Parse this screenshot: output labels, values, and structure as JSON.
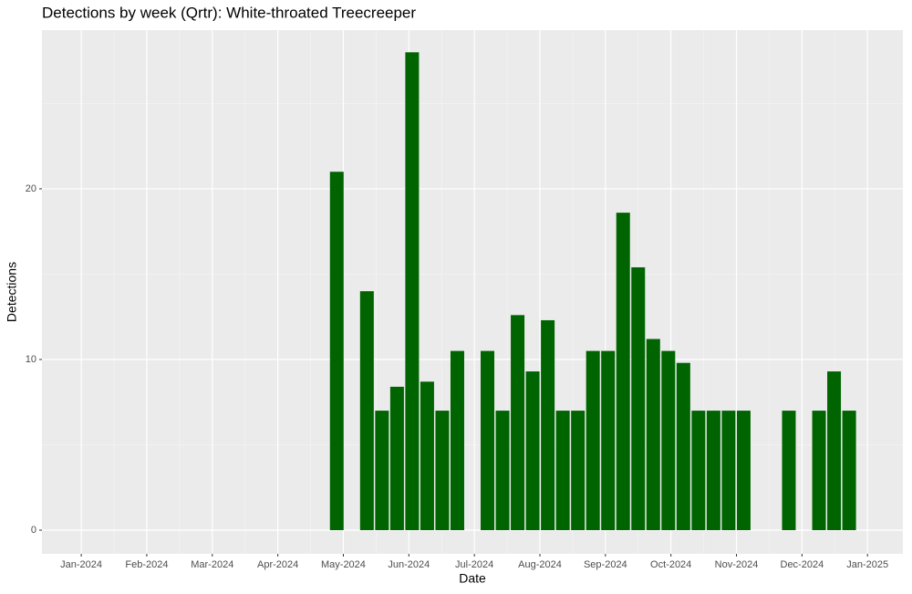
{
  "chart_data": {
    "type": "bar",
    "title": "Detections by week (Qrtr): White-throated Treecreeper",
    "x_label": "Date",
    "y_label": "Detections",
    "x": [
      4.9,
      5.36,
      5.59,
      5.82,
      6.05,
      6.28,
      6.51,
      6.74,
      7.2,
      7.43,
      7.66,
      7.89,
      8.12,
      8.35,
      8.58,
      8.81,
      9.04,
      9.27,
      9.5,
      9.73,
      9.96,
      10.19,
      10.42,
      10.65,
      10.88,
      11.11,
      11.8,
      12.26,
      12.49,
      12.72
    ],
    "values": [
      21,
      14,
      7,
      8.4,
      28,
      8.7,
      7,
      10.5,
      10.5,
      7,
      12.6,
      9.3,
      12.3,
      7,
      7,
      10.5,
      10.5,
      18.6,
      15.4,
      11.2,
      10.5,
      9.8,
      7,
      7,
      7,
      7,
      7,
      7,
      9.3,
      7
    ],
    "color": "#006400",
    "xlim": [
      0.4,
      13.54
    ],
    "xticks": [
      {
        "value": 1,
        "label": "Jan-2024"
      },
      {
        "value": 2,
        "label": "Feb-2024"
      },
      {
        "value": 3,
        "label": "Mar-2024"
      },
      {
        "value": 4,
        "label": "Apr-2024"
      },
      {
        "value": 5,
        "label": "May-2024"
      },
      {
        "value": 6,
        "label": "Jun-2024"
      },
      {
        "value": 7,
        "label": "Jul-2024"
      },
      {
        "value": 8,
        "label": "Aug-2024"
      },
      {
        "value": 9,
        "label": "Sep-2024"
      },
      {
        "value": 10,
        "label": "Oct-2024"
      },
      {
        "value": 11,
        "label": "Nov-2024"
      },
      {
        "value": 12,
        "label": "Dec-2024"
      },
      {
        "value": 13,
        "label": "Jan-2025"
      }
    ],
    "ylim": [
      -1.39,
      29.3
    ],
    "yticks": [
      0,
      10,
      20
    ],
    "grid": true
  }
}
